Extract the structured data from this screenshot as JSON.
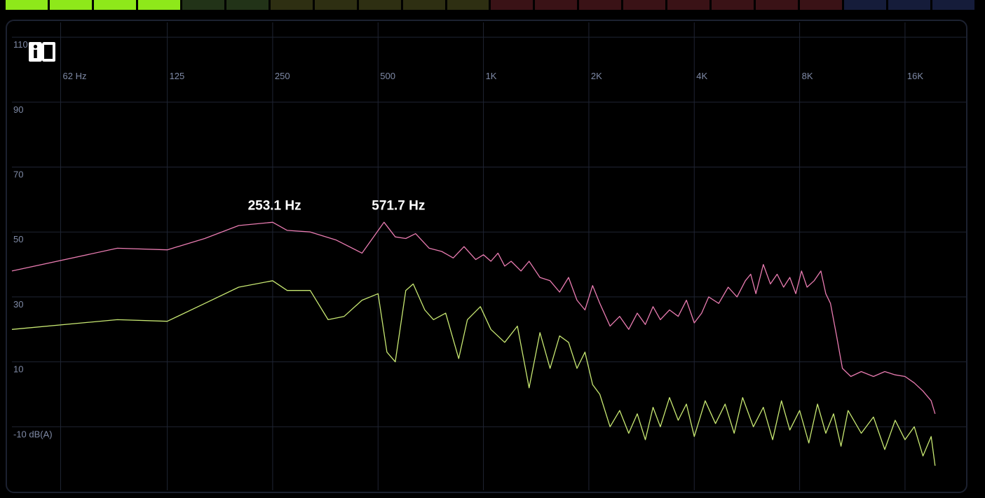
{
  "level_meter": {
    "segments": 22,
    "lit_segments": 4,
    "colors": {
      "lit": "#8ee81a",
      "green_dim": "#223318",
      "yellow_dim": "#2e2f12",
      "red_dim": "#3a1216",
      "blue_dim": "#151c3a"
    }
  },
  "info_button": {
    "icon": "book-info-icon"
  },
  "chart_data": {
    "type": "line",
    "x_scale": "log",
    "x_ticks": [
      {
        "value": 62,
        "label": "62 Hz"
      },
      {
        "value": 125,
        "label": "125"
      },
      {
        "value": 250,
        "label": "250"
      },
      {
        "value": 500,
        "label": "500"
      },
      {
        "value": 1000,
        "label": "1K"
      },
      {
        "value": 2000,
        "label": "2K"
      },
      {
        "value": 4000,
        "label": "4K"
      },
      {
        "value": 8000,
        "label": "8K"
      },
      {
        "value": 16000,
        "label": "16K"
      }
    ],
    "y_ticks": [
      {
        "value": 110,
        "label": "110"
      },
      {
        "value": 90,
        "label": "90"
      },
      {
        "value": 70,
        "label": "70"
      },
      {
        "value": 50,
        "label": "50"
      },
      {
        "value": 30,
        "label": "30"
      },
      {
        "value": 10,
        "label": "10"
      },
      {
        "value": -10,
        "label": "-10 dB(A)"
      }
    ],
    "xlim": [
      45,
      22000
    ],
    "ylim": [
      -30,
      115
    ],
    "grid": true,
    "background": "#000000",
    "grid_color": "#1f2433",
    "label_color": "#7f8aa6",
    "series": [
      {
        "color": "#e87bb0",
        "points": [
          [
            45,
            38
          ],
          [
            90,
            45
          ],
          [
            125,
            44.5
          ],
          [
            160,
            48
          ],
          [
            200,
            52
          ],
          [
            250,
            53
          ],
          [
            275,
            50.5
          ],
          [
            320,
            50
          ],
          [
            380,
            47.5
          ],
          [
            450,
            43.5
          ],
          [
            520,
            53
          ],
          [
            560,
            48.5
          ],
          [
            600,
            48
          ],
          [
            640,
            49.5
          ],
          [
            700,
            45
          ],
          [
            760,
            44
          ],
          [
            820,
            42
          ],
          [
            880,
            45.5
          ],
          [
            950,
            41.5
          ],
          [
            1000,
            43
          ],
          [
            1050,
            41
          ],
          [
            1100,
            43.5
          ],
          [
            1150,
            39.5
          ],
          [
            1200,
            41
          ],
          [
            1280,
            38
          ],
          [
            1350,
            41
          ],
          [
            1450,
            36
          ],
          [
            1550,
            35
          ],
          [
            1650,
            31.5
          ],
          [
            1750,
            36
          ],
          [
            1850,
            29
          ],
          [
            1950,
            26
          ],
          [
            2050,
            33.5
          ],
          [
            2150,
            28
          ],
          [
            2300,
            21
          ],
          [
            2450,
            24
          ],
          [
            2600,
            20
          ],
          [
            2750,
            25
          ],
          [
            2900,
            21.5
          ],
          [
            3050,
            27
          ],
          [
            3200,
            23
          ],
          [
            3400,
            26
          ],
          [
            3600,
            24
          ],
          [
            3800,
            29
          ],
          [
            4000,
            22
          ],
          [
            4200,
            25
          ],
          [
            4400,
            30
          ],
          [
            4700,
            28
          ],
          [
            5000,
            33
          ],
          [
            5300,
            30
          ],
          [
            5600,
            35
          ],
          [
            5800,
            37
          ],
          [
            6000,
            31
          ],
          [
            6300,
            40
          ],
          [
            6600,
            34
          ],
          [
            6900,
            37
          ],
          [
            7200,
            33
          ],
          [
            7500,
            36
          ],
          [
            7800,
            31
          ],
          [
            8100,
            38
          ],
          [
            8400,
            33
          ],
          [
            8800,
            35
          ],
          [
            9200,
            38
          ],
          [
            9500,
            31
          ],
          [
            9800,
            28
          ],
          [
            10200,
            18
          ],
          [
            10600,
            8
          ],
          [
            11200,
            5.5
          ],
          [
            12000,
            7
          ],
          [
            13000,
            5.5
          ],
          [
            14000,
            7
          ],
          [
            15000,
            6
          ],
          [
            16000,
            5.5
          ],
          [
            17000,
            3.5
          ],
          [
            18000,
            1
          ],
          [
            19000,
            -2
          ],
          [
            19500,
            -6
          ]
        ]
      },
      {
        "color": "#c8e872",
        "points": [
          [
            45,
            20
          ],
          [
            90,
            23
          ],
          [
            125,
            22.5
          ],
          [
            160,
            28
          ],
          [
            200,
            33
          ],
          [
            250,
            35
          ],
          [
            275,
            32
          ],
          [
            320,
            32
          ],
          [
            360,
            23
          ],
          [
            400,
            24
          ],
          [
            450,
            29
          ],
          [
            500,
            31
          ],
          [
            530,
            13
          ],
          [
            560,
            10
          ],
          [
            600,
            32
          ],
          [
            630,
            34
          ],
          [
            680,
            26
          ],
          [
            720,
            23
          ],
          [
            780,
            25
          ],
          [
            850,
            11
          ],
          [
            900,
            23
          ],
          [
            980,
            27
          ],
          [
            1050,
            20
          ],
          [
            1150,
            16
          ],
          [
            1250,
            21
          ],
          [
            1350,
            2
          ],
          [
            1450,
            19
          ],
          [
            1550,
            8
          ],
          [
            1650,
            18
          ],
          [
            1750,
            16
          ],
          [
            1850,
            8
          ],
          [
            1950,
            13
          ],
          [
            2050,
            3
          ],
          [
            2150,
            0
          ],
          [
            2300,
            -10
          ],
          [
            2450,
            -5
          ],
          [
            2600,
            -12
          ],
          [
            2750,
            -6
          ],
          [
            2900,
            -14
          ],
          [
            3050,
            -4
          ],
          [
            3200,
            -10
          ],
          [
            3400,
            -1
          ],
          [
            3600,
            -8
          ],
          [
            3800,
            -3
          ],
          [
            4000,
            -13
          ],
          [
            4300,
            -2
          ],
          [
            4600,
            -9
          ],
          [
            4900,
            -3
          ],
          [
            5200,
            -12
          ],
          [
            5500,
            -1
          ],
          [
            5900,
            -10
          ],
          [
            6300,
            -4
          ],
          [
            6700,
            -14
          ],
          [
            7100,
            -2
          ],
          [
            7500,
            -11
          ],
          [
            8000,
            -5
          ],
          [
            8500,
            -15
          ],
          [
            9000,
            -3
          ],
          [
            9500,
            -12
          ],
          [
            10000,
            -6
          ],
          [
            10500,
            -16
          ],
          [
            11000,
            -5
          ],
          [
            12000,
            -12
          ],
          [
            13000,
            -7
          ],
          [
            14000,
            -17
          ],
          [
            15000,
            -8
          ],
          [
            16000,
            -14
          ],
          [
            17000,
            -10
          ],
          [
            18000,
            -19
          ],
          [
            19000,
            -13
          ],
          [
            19500,
            -22
          ]
        ]
      }
    ],
    "annotations": [
      {
        "label": "253.1 Hz",
        "x": 253.1,
        "y": 53
      },
      {
        "label": "571.7 Hz",
        "x": 571.7,
        "y": 53
      }
    ]
  }
}
